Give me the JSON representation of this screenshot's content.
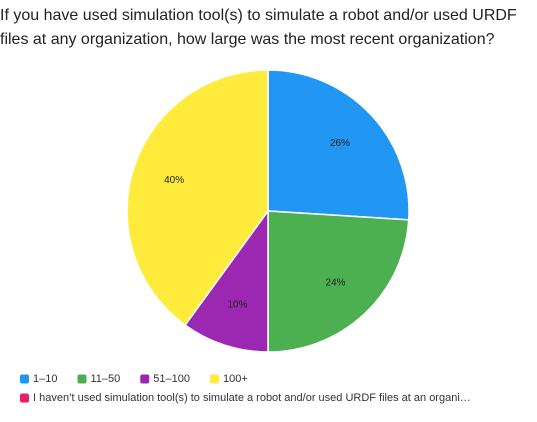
{
  "chart_data": {
    "type": "pie",
    "title": "If you have used simulation tool(s) to simulate a robot and/or used URDF files at any organization, how large was the most recent organization?",
    "categories": [
      "1–10",
      "11–50",
      "51–100",
      "100+",
      "I haven’t used simulation tool(s) to simulate a robot and/or used URDF files at an organi…"
    ],
    "values": [
      26,
      24,
      10,
      40,
      0
    ],
    "value_labels": [
      "26%",
      "24%",
      "10%",
      "40%",
      null
    ],
    "colors": [
      "#2196f3",
      "#4caf50",
      "#9c27b0",
      "#ffeb3b",
      "#e91e63"
    ]
  }
}
